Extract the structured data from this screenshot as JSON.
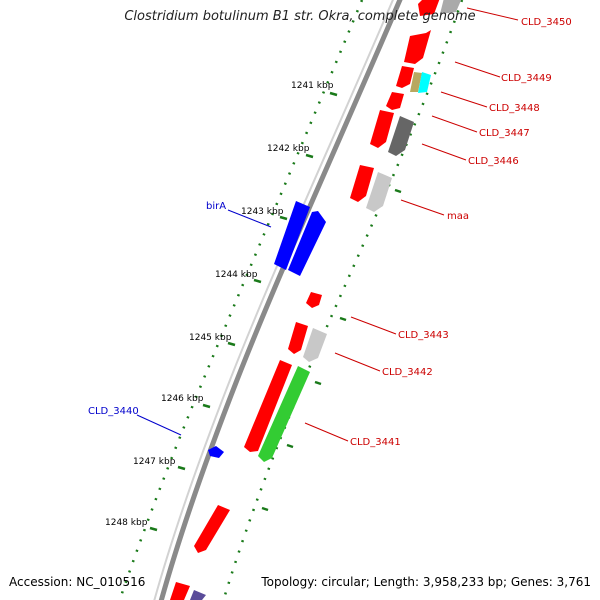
{
  "title": "Clostridium botulinum B1 str. Okra, complete genome",
  "footer": {
    "accession": "Accession: NC_010516",
    "topology": "Topology: circular; Length: 3,958,233 bp; Genes: 3,761"
  },
  "colors": {
    "backbone": "#777777",
    "ticks": "#1a7a1a",
    "label_red": "#cc0000",
    "label_blue": "#0000cc",
    "red": "#ff0000",
    "blue": "#0000ff",
    "green": "#33cc33",
    "gray": "#c8c8c8",
    "darkgray": "#666666",
    "cyan": "#00ffff",
    "olive": "#b8a860"
  },
  "ruler": [
    {
      "label": "1241 kbp"
    },
    {
      "label": "1242 kbp"
    },
    {
      "label": "1243 kbp"
    },
    {
      "label": "1244 kbp"
    },
    {
      "label": "1245 kbp"
    },
    {
      "label": "1246 kbp"
    },
    {
      "label": "1247 kbp"
    },
    {
      "label": "1248 kbp"
    }
  ],
  "features": [
    {
      "name": "CLD_3450",
      "color": "red",
      "icon": "forward-arrow"
    },
    {
      "name": "CLD_3449",
      "color": "red",
      "icon": "forward-arrow"
    },
    {
      "name": "CLD_3448",
      "color": "red",
      "icon": "forward-arrow"
    },
    {
      "name": "CLD_3447",
      "color": "darkgray",
      "icon": "forward-arrow"
    },
    {
      "name": "CLD_3446",
      "color": "red",
      "icon": "forward-arrow"
    },
    {
      "name": "maa",
      "color": "gray",
      "icon": "forward-arrow"
    },
    {
      "name": "birA",
      "color": "blue",
      "icon": "reverse-arrow"
    },
    {
      "name": "CLD_3443",
      "color": "gray",
      "icon": "forward-arrow"
    },
    {
      "name": "CLD_3442",
      "color": "red",
      "icon": "forward-arrow"
    },
    {
      "name": "CLD_3441",
      "color": "green",
      "icon": "forward-arrow"
    },
    {
      "name": "CLD_3440",
      "color": "blue",
      "icon": "reverse-arrow"
    }
  ]
}
